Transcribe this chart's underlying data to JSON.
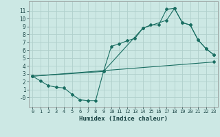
{
  "xlabel": "Humidex (Indice chaleur)",
  "background_color": "#cce8e4",
  "grid_color": "#b0d0cc",
  "line_color": "#1a6e62",
  "xlim": [
    -0.5,
    23.5
  ],
  "ylim": [
    -1.2,
    12.2
  ],
  "xticks": [
    0,
    1,
    2,
    3,
    4,
    5,
    6,
    7,
    8,
    9,
    10,
    11,
    12,
    13,
    14,
    15,
    16,
    17,
    18,
    19,
    20,
    21,
    22,
    23
  ],
  "yticks": [
    0,
    1,
    2,
    3,
    4,
    5,
    6,
    7,
    8,
    9,
    10,
    11
  ],
  "ytick_labels": [
    "-0",
    "1",
    "2",
    "3",
    "4",
    "5",
    "6",
    "7",
    "8",
    "9",
    "10",
    "11"
  ],
  "line1_x": [
    0,
    1,
    2,
    3,
    4,
    5,
    6,
    7,
    8,
    9,
    10,
    11,
    12,
    13,
    14,
    15,
    16,
    17,
    18,
    19,
    20,
    21,
    22,
    23
  ],
  "line1_y": [
    2.7,
    2.1,
    1.5,
    1.3,
    1.2,
    0.4,
    -0.3,
    -0.4,
    -0.4,
    3.3,
    6.5,
    6.8,
    7.2,
    7.5,
    8.8,
    9.2,
    9.2,
    11.2,
    11.3,
    9.5,
    9.2,
    7.3,
    6.2,
    5.4
  ],
  "line2_x": [
    0,
    9,
    14,
    17,
    18,
    19,
    20,
    21,
    22,
    23
  ],
  "line2_y": [
    2.7,
    3.3,
    8.8,
    9.8,
    11.3,
    9.5,
    9.2,
    7.3,
    6.2,
    5.4
  ],
  "line3_x": [
    0,
    23
  ],
  "line3_y": [
    2.7,
    4.5
  ]
}
